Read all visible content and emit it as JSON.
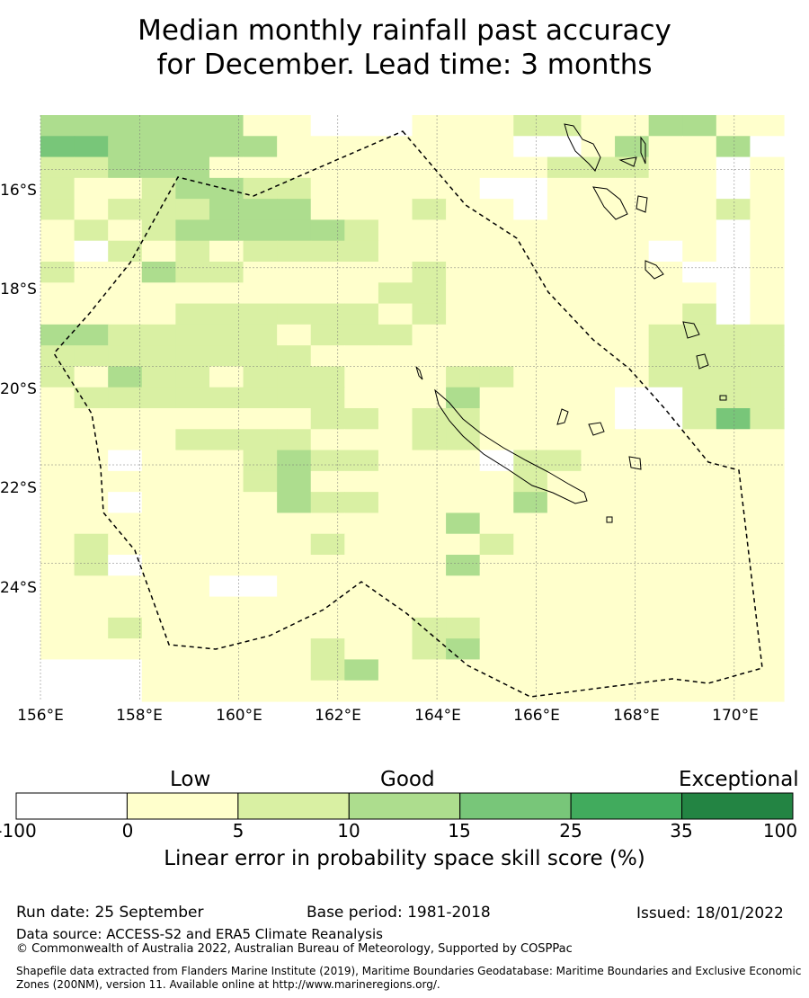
{
  "title_line1": "Median monthly rainfall past accuracy",
  "title_line2": "for December. Lead time: 3 months",
  "map": {
    "lon_range": [
      156,
      171
    ],
    "lat_range": [
      -26.8,
      -14.9
    ],
    "lon_ticks": [
      "156°E",
      "158°E",
      "160°E",
      "162°E",
      "164°E",
      "166°E",
      "168°E",
      "170°E"
    ],
    "lat_ticks": [
      "16°S",
      "18°S",
      "20°S",
      "22°S",
      "24°S"
    ],
    "boundary_style": "dashed EEZ outline",
    "grid_rows": [
      "3333331100011122113311",
      "4433333111111100131130",
      "2233311111111112221101",
      "2112332211111001111101",
      "2122233311121101111121",
      "1212333332111111111101",
      "1021212222111111110101",
      "2113221111121111111001",
      "1111111111221111111101",
      "1111222222121111111201",
      "3322222122211111112222",
      "2222222211111111112222",
      "2132212221112211112222",
      "1222222221113111100222",
      "1111111122122111100242",
      "1111222211122111111111",
      "1101112322111022111111",
      "1111112311111121111111",
      "1101111322111131111111",
      "1111111111113111111111",
      "1211111121111211111111",
      "1201111111113111111111",
      "1111100111111111111111",
      "1111111111111111111111",
      "1121111111122111111111",
      "1111111121123111111111",
      "0001111123111111111111",
      "0001111111111111111111"
    ]
  },
  "colorbar": {
    "categories": [
      "Low",
      "Good",
      "Exceptional"
    ],
    "ticks": [
      "-100",
      "0",
      "5",
      "10",
      "15",
      "25",
      "35",
      "100"
    ],
    "colors": [
      "#ffffff",
      "#ffffcc",
      "#d9f0a3",
      "#addd8e",
      "#78c679",
      "#41ab5d",
      "#238443"
    ],
    "label": "Linear error in probability space skill score (%)"
  },
  "footer": {
    "run_date": "Run date: 25 September",
    "base_period": "Base period: 1981-2018",
    "issued": "Issued: 18/01/2022",
    "data_source": "Data source: ACCESS-S2 and ERA5 Climate Reanalysis",
    "copyright": "© Commonwealth of Australia 2022, Australian Bureau of Meteorology, Supported by COSPPac",
    "shapefile": "Shapefile data extracted from Flanders Marine Institute (2019), Maritime Boundaries Geodatabase: Maritime Boundaries and Exclusive Economic Zones (200NM), version 11. Available online at http://www.marineregions.org/."
  }
}
